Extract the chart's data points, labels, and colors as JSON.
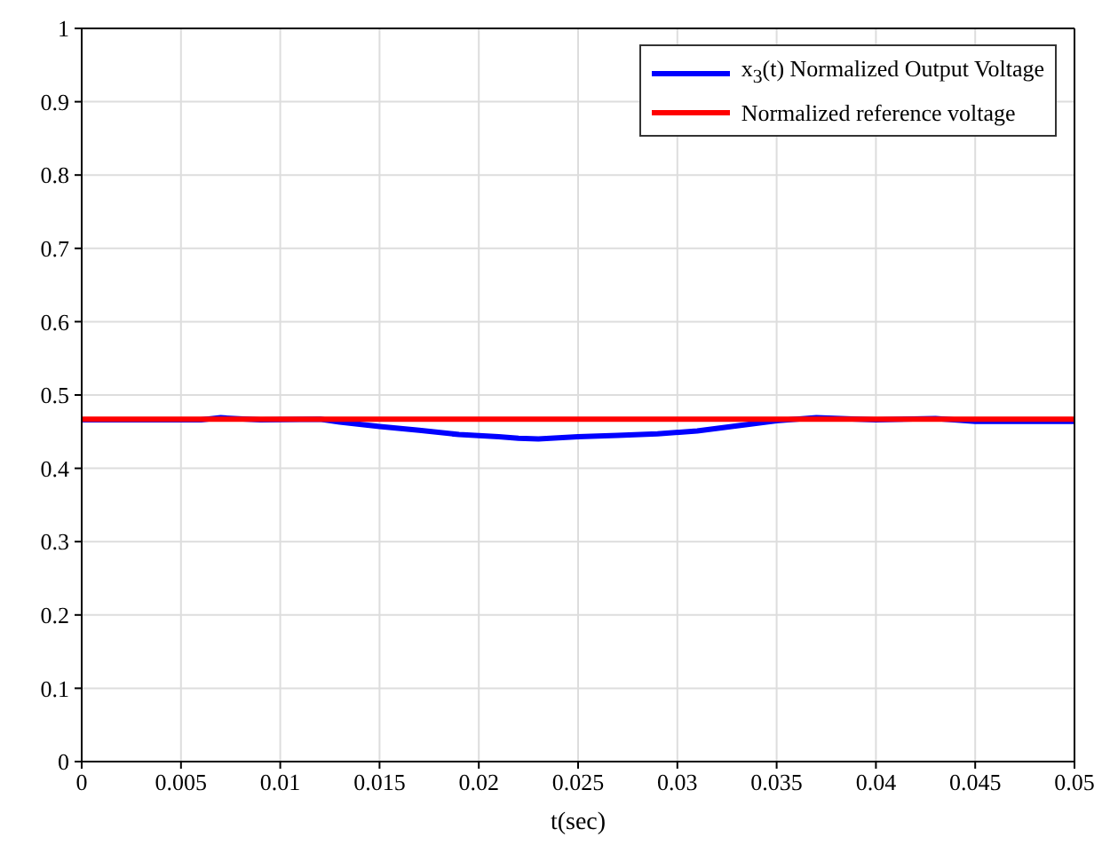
{
  "chart_data": {
    "type": "line",
    "xlabel": "t(sec)",
    "xlim": [
      0,
      0.05
    ],
    "xticks": [
      0,
      0.005,
      0.01,
      0.015,
      0.02,
      0.025,
      0.03,
      0.035,
      0.04,
      0.045,
      0.05
    ],
    "ylim": [
      0,
      1
    ],
    "yticks": [
      0,
      0.1,
      0.2,
      0.3,
      0.4,
      0.5,
      0.6,
      0.7,
      0.8,
      0.9,
      1
    ],
    "grid": true,
    "legend": "top right",
    "line_style": "solid",
    "marker": "none",
    "series": [
      {
        "name": "x$_{3}$(t) Normalized Output Voltage",
        "color": "#0000ff",
        "x": [
          0,
          0.006,
          0.007,
          0.009,
          0.012,
          0.013,
          0.015,
          0.017,
          0.019,
          0.021,
          0.022,
          0.023,
          0.025,
          0.027,
          0.029,
          0.031,
          0.033,
          0.035,
          0.037,
          0.04,
          0.043,
          0.045,
          0.048,
          0.05
        ],
        "values": [
          0.466,
          0.466,
          0.469,
          0.466,
          0.467,
          0.463,
          0.457,
          0.452,
          0.446,
          0.443,
          0.441,
          0.44,
          0.443,
          0.445,
          0.447,
          0.451,
          0.458,
          0.465,
          0.469,
          0.466,
          0.468,
          0.464,
          0.464,
          0.464
        ]
      },
      {
        "name": "Normalized reference voltage",
        "color": "#ff0000",
        "x": [
          0,
          0.05
        ],
        "values": [
          0.467,
          0.467
        ]
      }
    ]
  }
}
